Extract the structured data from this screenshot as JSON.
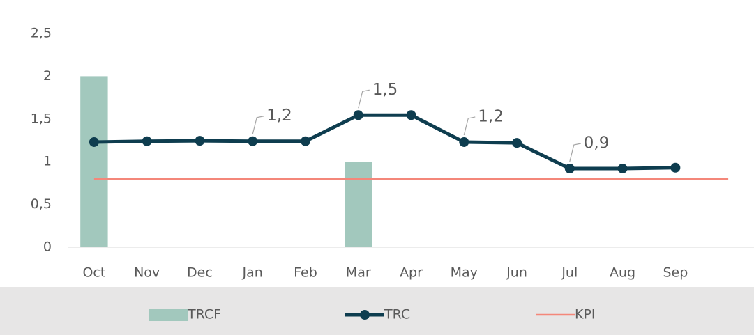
{
  "chart_data": {
    "type": "combo",
    "categories": [
      "Oct",
      "Nov",
      "Dec",
      "Jan",
      "Feb",
      "Mar",
      "Apr",
      "May",
      "Jun",
      "Jul",
      "Aug",
      "Sep",
      null
    ],
    "series": [
      {
        "name": "TRCF",
        "type": "bar",
        "color": "#a2c8bd",
        "values": [
          2,
          0,
          0,
          0,
          0,
          1,
          0,
          0,
          0,
          0,
          0,
          0,
          null
        ]
      },
      {
        "name": "TRC",
        "type": "line",
        "color": "#0e3d4f",
        "values": [
          1.23,
          1.24,
          1.245,
          1.24,
          1.24,
          1.545,
          1.545,
          1.23,
          1.22,
          0.92,
          0.92,
          0.93,
          null
        ],
        "value_labels": [
          null,
          null,
          null,
          "1,2",
          null,
          "1,5",
          null,
          "1,2",
          null,
          "0,9",
          null,
          null,
          null
        ]
      },
      {
        "name": "KPI",
        "type": "line",
        "color": "#f4877a",
        "values": [
          0.8,
          0.8,
          0.8,
          0.8,
          0.8,
          0.8,
          0.8,
          0.8,
          0.8,
          0.8,
          0.8,
          0.8,
          0.8
        ]
      }
    ],
    "ylim": [
      0,
      2.5
    ],
    "yticks": [
      0,
      {
        "value": 0.5,
        "label": "0,5"
      },
      1,
      {
        "value": 1.5,
        "label": "1,5"
      },
      2,
      {
        "value": 2.5,
        "label": "2,5"
      }
    ],
    "grid": false,
    "legend": "bottom"
  }
}
